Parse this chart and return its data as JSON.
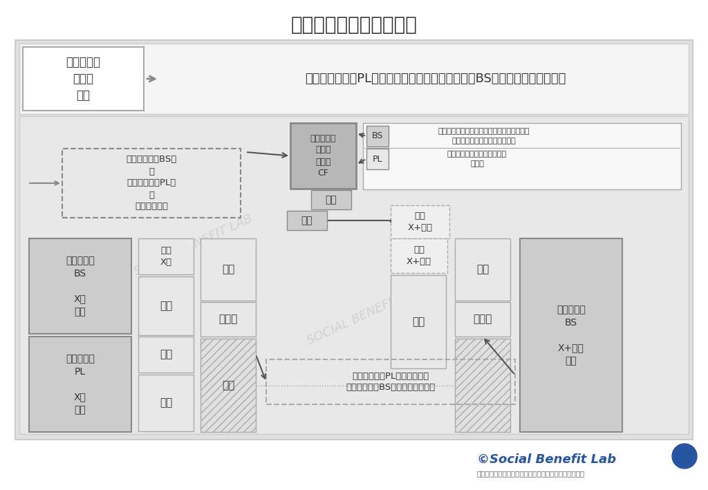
{
  "title": "財務３表は連動している",
  "bg_outer": "#e2e2e2",
  "bg_inner": "#ebebeb",
  "bg_white": "#ffffff",
  "color_box_dark": "#c8c8c8",
  "color_box_mid": "#e0e0e0",
  "color_cf_box": "#b0b0b0",
  "color_text": "#333333",
  "color_edge": "#999999",
  "color_edge_light": "#bbbbbb",
  "color_arrow": "#555555",
  "color_blue": "#2855a0",
  "color_watermark": "#d0d0d0",
  "color_footer_blue": "#2855a0",
  "color_footer_gray": "#666666",
  "top_header_text": "「損益計算書（PL）」の損益が、「貸借対照表（BS）」に加減算されます",
  "viburi_text": "【振返り】\n第１回\n結論",
  "cf_text": "キャッシュ\nフロー\n計算書\nCF",
  "bs_label": "BS",
  "pl_label": "PL",
  "bs_annot1": "売上債権、棚卸資産、仕入債務、経過勘定、\n投資活動、財務活動等を加減算",
  "pl_annot1": "減価償却費等の非資金項目を\n加減算",
  "dashed_box_text": "「貸借対照表BS」\nと\n「損益計算書PL」\nは\n連動している",
  "dekkin_text": "出金",
  "nyukin_text": "入金",
  "genkin_x1nen_text": "現金\nX+１年",
  "genkin_xnen_text": "現金\nX年",
  "shisan_text": "資産",
  "rieki_text": "利益",
  "hiyou_text": "費用",
  "fusai_text": "負債",
  "junjisan_text": "純資産",
  "shueki_text": "収益",
  "bs_l_text": "貸借対照表\nBS\n\nX年\n期首",
  "pl_l_text": "損益計算書\nPL\n\nX年\n期末",
  "bs_r_text": "貸借対照表\nBS\n\nX+１年\n期首",
  "bottom_ann_text": "「損益計算書PL」の損益が、\n「貸借対照表BS」に加減算される",
  "watermark_text": "SOCIAL BENEFIT LAB",
  "footer_text": "©Social Benefit Lab",
  "footer_sub": "この画像を改変、転載する場合はお問い合わせください"
}
